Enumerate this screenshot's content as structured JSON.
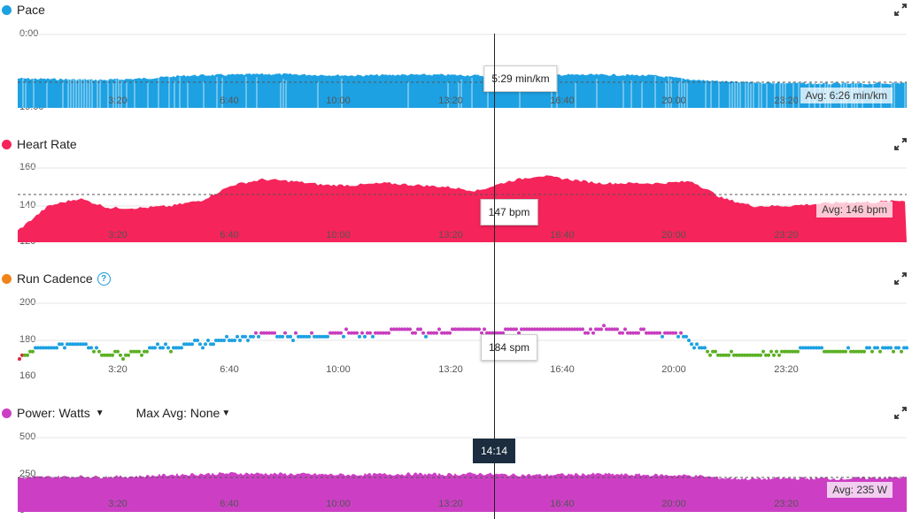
{
  "colors": {
    "pace": "#1da1e2",
    "heart_rate": "#f5245a",
    "power": "#cc3fc4",
    "cadence_blue": "#1da1e2",
    "cadence_green": "#5bb025",
    "cadence_purple": "#c83ec0",
    "cadence_orange": "#f08318",
    "cadence_red": "#e0263b"
  },
  "x_ticks": [
    "3:20",
    "6:40",
    "10:00",
    "13:20",
    "16:40",
    "20:00",
    "23:20"
  ],
  "cursor_time": "14:14",
  "panels": [
    {
      "title": "Pace",
      "icon": "expand-icon",
      "y_ticks": [
        "0:00",
        "10:00"
      ],
      "tooltip": "5:29 min/km",
      "avg": "Avg: 6:26 min/km"
    },
    {
      "title": "Heart Rate",
      "icon": "expand-icon",
      "y_ticks": [
        "160",
        "140",
        "120"
      ],
      "tooltip": "147 bpm",
      "avg": "Avg: 146 bpm"
    },
    {
      "title": "Run Cadence",
      "icon": "expand-icon",
      "help_icon": "help-icon",
      "y_ticks": [
        "200",
        "180",
        "160"
      ],
      "tooltip": "184 spm"
    },
    {
      "title": "Power: Watts",
      "icon": "expand-icon",
      "max_avg": "Max Avg: None",
      "y_ticks": [
        "500",
        "250",
        "0"
      ],
      "avg": "Avg: 235 W"
    }
  ],
  "chart_data": [
    {
      "type": "area",
      "title": "Pace",
      "ylim": [
        "0:00",
        "10:00"
      ],
      "avg": "6:26 min/km",
      "cursor_value": "5:29 min/km",
      "series": [
        {
          "values": [
            6.0,
            6.1,
            6.2,
            6.0,
            5.6,
            5.5,
            5.4,
            5.5,
            5.6,
            5.5,
            5.5,
            5.6,
            5.5,
            5.5,
            5.5,
            5.6,
            6.2,
            6.5,
            6.6,
            6.7,
            6.7,
            6.6
          ]
        }
      ]
    },
    {
      "type": "area",
      "title": "Heart Rate",
      "ylim": [
        120,
        163
      ],
      "avg": 146,
      "cursor_value": 147,
      "series": [
        {
          "values": [
            127,
            140,
            144,
            139,
            139,
            140,
            143,
            151,
            154,
            153,
            151,
            151,
            152,
            151,
            150,
            148,
            153,
            156,
            154,
            152,
            152,
            152,
            153,
            144,
            140,
            140,
            141,
            142,
            142,
            143
          ]
        }
      ]
    },
    {
      "type": "scatter",
      "title": "Run Cadence",
      "ylim": [
        160,
        200
      ],
      "cursor_value": 184,
      "series": [
        {
          "values": [
            170,
            176,
            177,
            178,
            173,
            172,
            174,
            176,
            177,
            178,
            180,
            182,
            184,
            182,
            182,
            183,
            184,
            184,
            185,
            185,
            184,
            185,
            186,
            184,
            186,
            185,
            185,
            185,
            186,
            185,
            184,
            184,
            184,
            176,
            172,
            172,
            173,
            174,
            175,
            175,
            174,
            175,
            175,
            176
          ]
        }
      ]
    },
    {
      "type": "area",
      "title": "Power: Watts",
      "ylim": [
        0,
        500
      ],
      "avg": 235,
      "cursor_time": "14:14",
      "series": [
        {
          "values": [
            230,
            235,
            238,
            236,
            240,
            250,
            255,
            260,
            258,
            255,
            252,
            250,
            254,
            256,
            252,
            258,
            250,
            248,
            252,
            255,
            250,
            248,
            245,
            228,
            222,
            225,
            226,
            224,
            230,
            232
          ]
        }
      ]
    }
  ]
}
